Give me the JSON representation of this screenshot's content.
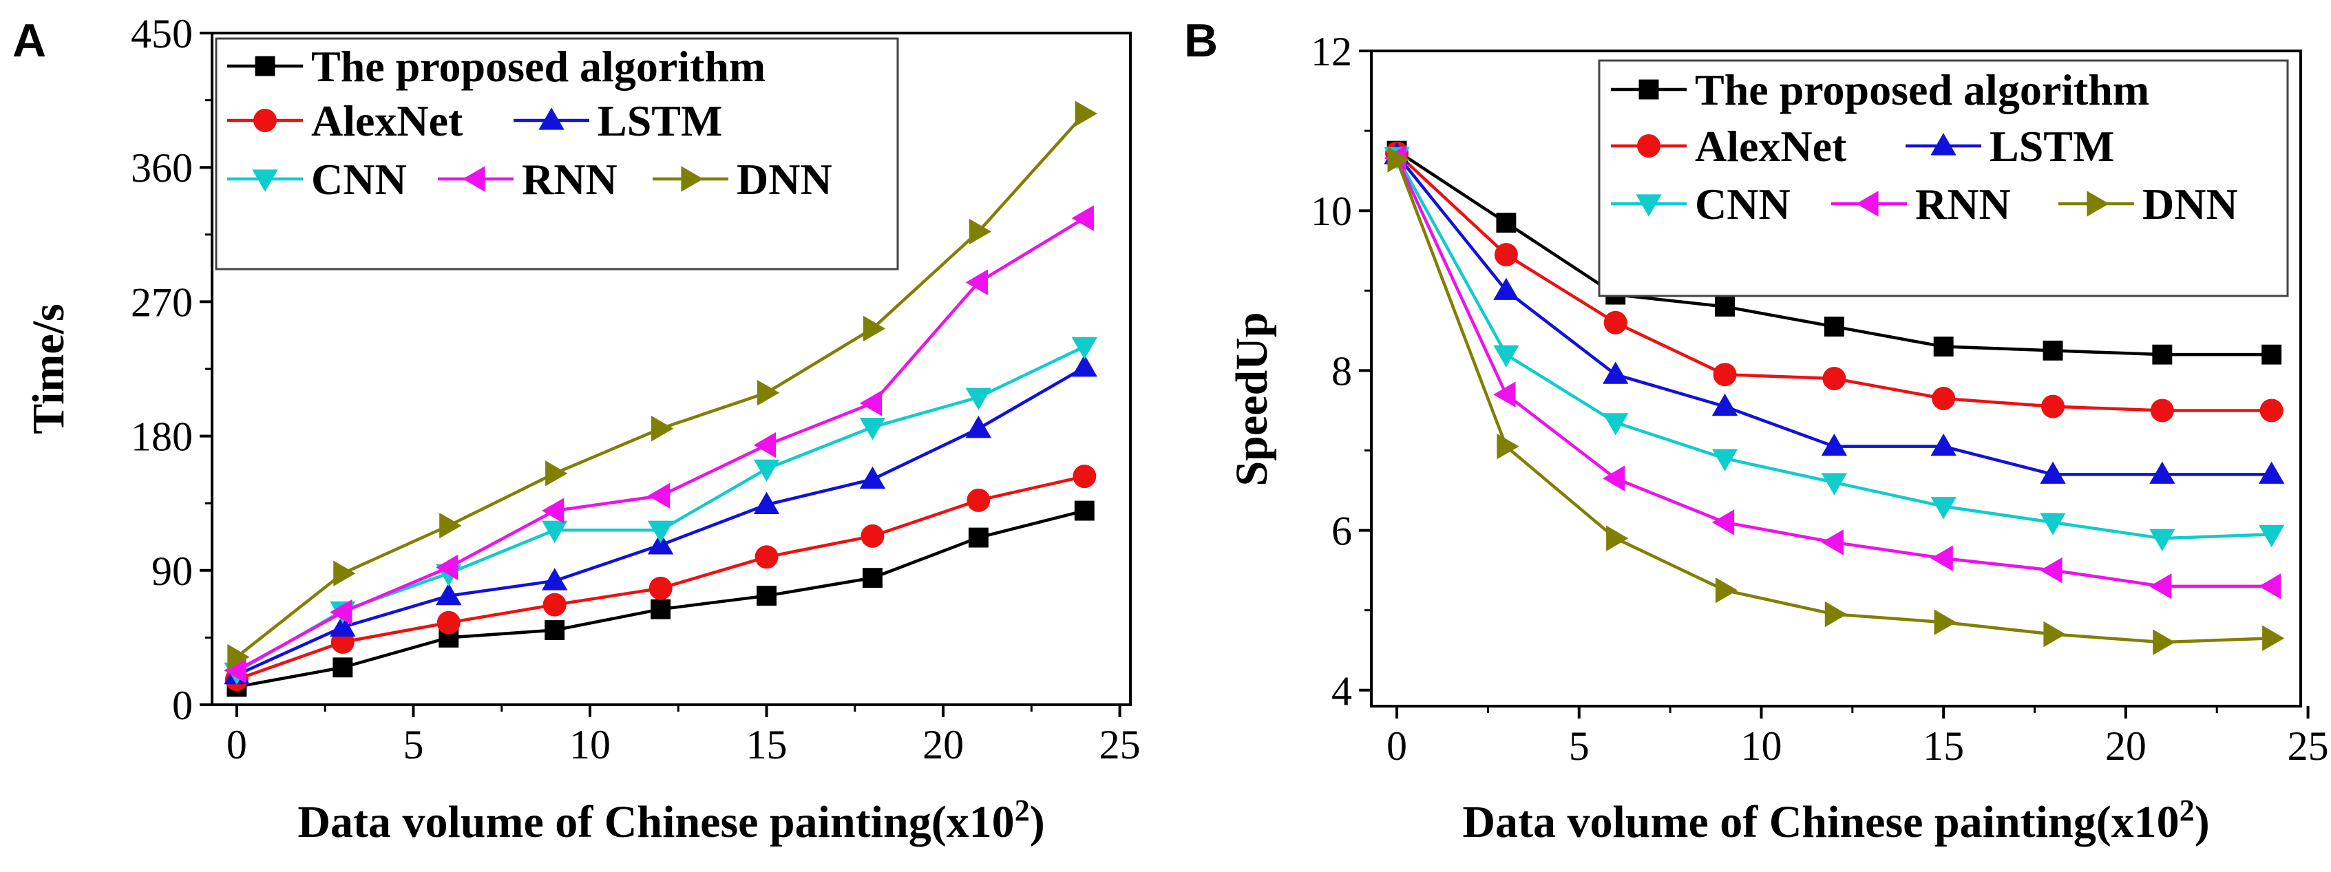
{
  "colors": {
    "The proposed algorithm": "#000000",
    "AlexNet": "#ee1111",
    "LSTM": "#1111dd",
    "CNN": "#11cccc",
    "RNN": "#ee11ee",
    "DNN": "#808000"
  },
  "markers": {
    "The proposed algorithm": "square",
    "AlexNet": "circle",
    "LSTM": "triangle-up",
    "CNN": "triangle-down",
    "RNN": "triangle-left",
    "DNN": "triangle-right"
  },
  "chart_data": [
    {
      "panel": "A",
      "type": "line",
      "xlabel": "Data volume of Chinese painting(x10",
      "xlabel_sup": "2",
      "xlabel_tail": ")",
      "ylabel": "Time/s",
      "xlim": [
        -0.7,
        25.3
      ],
      "ylim": [
        0,
        450
      ],
      "xticks": [
        0,
        5,
        10,
        15,
        20,
        25
      ],
      "yticks": [
        0,
        90,
        180,
        270,
        360,
        450
      ],
      "x": [
        0,
        3,
        6,
        9,
        12,
        15,
        18,
        21,
        24
      ],
      "legend_position": "top-left",
      "legend_rows": [
        [
          "The proposed algorithm"
        ],
        [
          "AlexNet",
          "LSTM"
        ],
        [
          "CNN",
          "RNN",
          "DNN"
        ]
      ],
      "series": [
        {
          "name": "The proposed algorithm",
          "values": [
            12,
            25,
            45,
            50,
            64,
            73,
            85,
            112,
            130
          ]
        },
        {
          "name": "AlexNet",
          "values": [
            17,
            42,
            55,
            67,
            78,
            99,
            113,
            137,
            153
          ]
        },
        {
          "name": "LSTM",
          "values": [
            20,
            52,
            73,
            83,
            107,
            134,
            151,
            185,
            226
          ]
        },
        {
          "name": "CNN",
          "values": [
            22,
            63,
            88,
            117,
            117,
            158,
            186,
            206,
            240
          ]
        },
        {
          "name": "RNN",
          "values": [
            23,
            62,
            92,
            130,
            140,
            174,
            202,
            283,
            326
          ]
        },
        {
          "name": "DNN",
          "values": [
            32,
            88,
            120,
            155,
            185,
            209,
            252,
            317,
            396
          ]
        }
      ]
    },
    {
      "panel": "B",
      "type": "line",
      "xlabel": "Data volume of Chinese painting(x10",
      "xlabel_sup": "2",
      "xlabel_tail": ")",
      "ylabel": "SpeedUp",
      "xlim": [
        -0.7,
        24.8
      ],
      "ylim": [
        3.8,
        12
      ],
      "xticks": [
        0,
        5,
        10,
        15,
        20,
        25
      ],
      "yticks": [
        4,
        6,
        8,
        10,
        12
      ],
      "x": [
        0,
        3,
        6,
        9,
        12,
        15,
        18,
        21,
        24
      ],
      "legend_position": "top-right",
      "legend_rows": [
        [
          "The proposed algorithm"
        ],
        [
          "AlexNet",
          "LSTM"
        ],
        [
          "CNN",
          "RNN",
          "DNN"
        ]
      ],
      "series": [
        {
          "name": "The proposed algorithm",
          "values": [
            10.75,
            9.85,
            8.95,
            8.8,
            8.55,
            8.3,
            8.25,
            8.2,
            8.2
          ]
        },
        {
          "name": "AlexNet",
          "values": [
            10.72,
            9.45,
            8.6,
            7.95,
            7.9,
            7.65,
            7.55,
            7.5,
            7.5
          ]
        },
        {
          "name": "LSTM",
          "values": [
            10.7,
            9.0,
            7.95,
            7.55,
            7.05,
            7.05,
            6.7,
            6.7,
            6.7
          ]
        },
        {
          "name": "CNN",
          "values": [
            10.68,
            8.2,
            7.35,
            6.9,
            6.6,
            6.3,
            6.1,
            5.9,
            5.95
          ]
        },
        {
          "name": "RNN",
          "values": [
            10.66,
            7.7,
            6.65,
            6.1,
            5.85,
            5.65,
            5.5,
            5.3,
            5.3
          ]
        },
        {
          "name": "DNN",
          "values": [
            10.64,
            7.05,
            5.9,
            5.25,
            4.95,
            4.85,
            4.7,
            4.6,
            4.65
          ]
        }
      ]
    }
  ]
}
